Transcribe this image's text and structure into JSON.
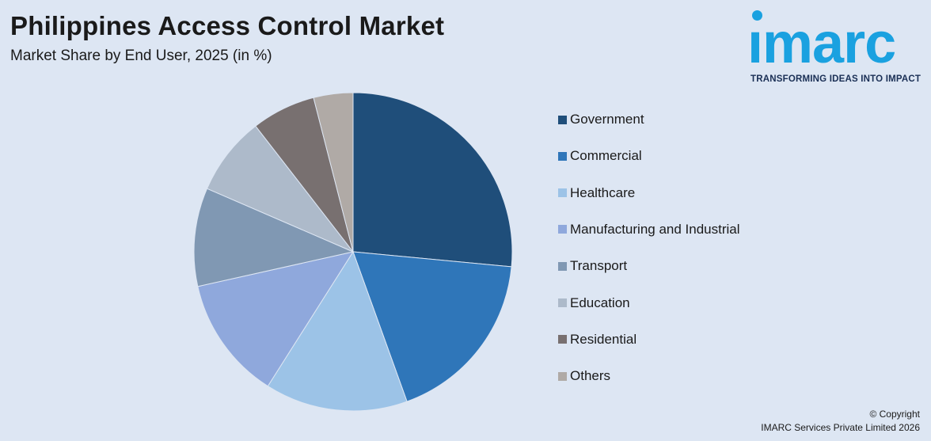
{
  "header": {
    "title": "Philippines Access Control Market",
    "subtitle": "Market Share by End User, 2025 (in %)"
  },
  "logo": {
    "wordmark": "ımarc",
    "tagline": "TRANSFORMING IDEAS INTO IMPACT",
    "color": "#1aa1e0"
  },
  "footer": {
    "copyright_line1": "© Copyright",
    "copyright_line2": "IMARC Services Private Limited 2026"
  },
  "chart_data": {
    "type": "pie",
    "title": "Philippines Access Control Market",
    "subtitle": "Market Share by End User, 2025 (in %)",
    "legend_position": "right",
    "categories": [
      "Government",
      "Commercial",
      "Healthcare",
      "Manufacturing and Industrial",
      "Transport",
      "Education",
      "Residential",
      "Others"
    ],
    "values": [
      26.5,
      18.0,
      14.5,
      12.5,
      10.0,
      8.0,
      6.5,
      4.0
    ],
    "colors": [
      "#1f4e7a",
      "#2f76b9",
      "#9cc3e7",
      "#8fa8dc",
      "#8098b3",
      "#adbaca",
      "#787070",
      "#b0aaa6"
    ]
  }
}
